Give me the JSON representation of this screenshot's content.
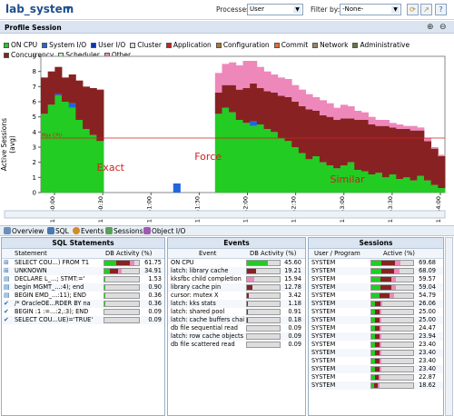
{
  "header": {
    "title": "lab_system",
    "processes_label": "Processes:",
    "processes_value": "User",
    "filter_label": "Filter by:",
    "filter_value": "-None-"
  },
  "profile": {
    "title": "Profile Session"
  },
  "legend": [
    {
      "name": "ON CPU",
      "color": "#22cc22"
    },
    {
      "name": "System I/O",
      "color": "#2266dd"
    },
    {
      "name": "User I/O",
      "color": "#1133aa"
    },
    {
      "name": "Cluster",
      "color": "#dddddd"
    },
    {
      "name": "Application",
      "color": "#cc2222"
    },
    {
      "name": "Configuration",
      "color": "#aa7733"
    },
    {
      "name": "Commit",
      "color": "#e07030"
    },
    {
      "name": "Network",
      "color": "#9a8866"
    },
    {
      "name": "Administrative",
      "color": "#667744"
    },
    {
      "name": "Concurrency",
      "color": "#882222"
    },
    {
      "name": "Scheduler",
      "color": "#ccffcc"
    },
    {
      "name": "Other",
      "color": "#ee88bb"
    }
  ],
  "chart_data": {
    "type": "area",
    "ylabel": "Active Sessions (avg)",
    "ylim": [
      0,
      9
    ],
    "yticks": [
      0,
      1,
      2,
      3,
      4,
      5,
      6,
      7,
      8,
      9
    ],
    "max_cpu_label": "Max CPU",
    "max_cpu": 3.6,
    "xticks": [
      "12:50:00",
      "12:50:30",
      "12:51:00",
      "12:51:30",
      "12:52:00",
      "12:52:30",
      "12:53:00",
      "12:53:30",
      "12:54:00"
    ],
    "annotations": [
      {
        "text": "Exact",
        "x": 50
      },
      {
        "text": "Force",
        "x": 120
      },
      {
        "text": "Similar",
        "x": 220
      }
    ],
    "x": [
      0,
      5,
      10,
      15,
      20,
      25,
      30,
      35,
      40,
      45,
      50,
      55,
      60,
      65,
      70,
      75,
      80,
      85,
      90,
      95,
      100,
      105,
      110,
      115,
      120,
      125,
      130,
      135,
      140,
      145,
      150,
      155,
      160,
      165,
      170,
      175,
      180,
      185,
      190,
      195,
      200,
      205,
      210,
      215,
      220,
      225,
      230,
      235,
      240,
      245,
      250,
      255,
      260,
      265,
      270,
      275,
      280,
      285
    ],
    "series": [
      {
        "name": "ON CPU",
        "values": [
          5.2,
          5.8,
          6.4,
          6.0,
          5.6,
          4.8,
          4.2,
          3.8,
          3.4,
          0,
          0,
          0,
          0,
          0,
          0,
          0,
          0,
          0,
          0,
          0,
          0,
          0,
          0,
          0,
          0,
          5.2,
          5.6,
          5.3,
          4.8,
          4.6,
          4.4,
          4.5,
          4.2,
          4.0,
          3.6,
          3.4,
          3.0,
          2.6,
          2.2,
          2.4,
          2.0,
          1.8,
          1.6,
          1.8,
          2.0,
          1.5,
          1.4,
          1.2,
          1.3,
          1.0,
          1.2,
          0.9,
          1.0,
          0.8,
          1.1,
          0.8,
          0.5,
          0.3
        ]
      },
      {
        "name": "System I/O",
        "values": [
          0,
          0,
          0.1,
          0,
          0.3,
          0,
          0,
          0,
          0,
          0,
          0,
          0,
          0,
          0,
          0,
          0,
          0,
          0,
          0,
          0.6,
          0,
          0,
          0,
          0,
          0,
          0,
          0,
          0,
          0,
          0,
          0.3,
          0,
          0,
          0,
          0,
          0,
          0,
          0,
          0,
          0,
          0,
          0,
          0,
          0,
          0,
          0,
          0,
          0,
          0,
          0,
          0,
          0,
          0,
          0,
          0,
          0,
          0,
          0
        ]
      },
      {
        "name": "Concurrency",
        "values": [
          2.4,
          2.2,
          1.8,
          1.6,
          1.9,
          2.6,
          2.8,
          3.1,
          3.4,
          0,
          0,
          0,
          0,
          0,
          0,
          0,
          0,
          0,
          0,
          0,
          0,
          0,
          0,
          0,
          0,
          1.4,
          1.5,
          1.8,
          2.0,
          2.3,
          2.5,
          2.4,
          2.5,
          2.6,
          2.8,
          2.9,
          3.0,
          3.1,
          3.3,
          3.0,
          3.1,
          3.2,
          3.2,
          3.1,
          2.9,
          3.3,
          3.4,
          3.3,
          3.1,
          3.4,
          3.1,
          3.3,
          3.2,
          3.3,
          3.0,
          2.6,
          2.4,
          2.1
        ]
      },
      {
        "name": "Other",
        "values": [
          0,
          0,
          0,
          0,
          0,
          0,
          0,
          0,
          0,
          0,
          0,
          0,
          0,
          0,
          0,
          0,
          0,
          0,
          0,
          0,
          0,
          0,
          0,
          0,
          0,
          1.3,
          1.4,
          1.5,
          1.6,
          1.8,
          1.5,
          1.4,
          1.3,
          1.2,
          1.2,
          1.2,
          1.1,
          1.1,
          1.0,
          0.9,
          1.0,
          0.9,
          0.8,
          0.9,
          0.8,
          0.6,
          0.5,
          0.5,
          0.4,
          0.4,
          0.3,
          0.3,
          0.2,
          0.3,
          0.2,
          0.2,
          0.1,
          0.1
        ]
      }
    ]
  },
  "tabs": [
    "Overview",
    "SQL",
    "Events",
    "Sessions",
    "Object I/O"
  ],
  "sql": {
    "title": "SQL Statements",
    "col1": "Statement",
    "col2": "DB Activity (%)",
    "rows": [
      {
        "text": "SELECT COU...) FROM T1",
        "val": "61.75",
        "bars": [
          [
            "#22cc22",
            40
          ],
          [
            "#882222",
            45
          ],
          [
            "#ee88bb",
            15
          ]
        ]
      },
      {
        "text": "UNKNOWN",
        "val": "34.91",
        "bars": [
          [
            "#22cc22",
            30
          ],
          [
            "#882222",
            50
          ],
          [
            "#ee88bb",
            20
          ]
        ]
      },
      {
        "text": "DECLARE L_...; STMT:='",
        "val": "1.53",
        "bars": [
          [
            "#22cc22",
            100
          ]
        ]
      },
      {
        "text": "begin MGMT_...:4); end",
        "val": "0.90",
        "bars": [
          [
            "#22cc22",
            100
          ]
        ]
      },
      {
        "text": "BEGIN EMD_...:11); END",
        "val": "0.36",
        "bars": [
          [
            "#22cc22",
            100
          ]
        ]
      },
      {
        "text": "/* OracleOE...RDER BY na",
        "val": "0.36",
        "bars": [
          [
            "#22cc22",
            100
          ]
        ]
      },
      {
        "text": "BEGIN :1 :=...:2,:3); END",
        "val": "0.09",
        "bars": [
          [
            "#22cc22",
            100
          ]
        ]
      },
      {
        "text": "SELECT COU...UE)='TRUE'",
        "val": "0.09",
        "bars": [
          [
            "#22cc22",
            100
          ]
        ]
      }
    ]
  },
  "events": {
    "title": "Events",
    "col1": "Event",
    "col2": "DB Activity (%)",
    "rows": [
      {
        "text": "ON CPU",
        "val": "45.60",
        "bars": [
          [
            "#22cc22",
            100
          ]
        ]
      },
      {
        "text": "latch: library cache",
        "val": "19.21",
        "bars": [
          [
            "#882222",
            100
          ]
        ]
      },
      {
        "text": "kksfbc child completion",
        "val": "15.94",
        "bars": [
          [
            "#ee88bb",
            100
          ]
        ]
      },
      {
        "text": "library cache pin",
        "val": "12.78",
        "bars": [
          [
            "#882222",
            100
          ]
        ]
      },
      {
        "text": "cursor: mutex X",
        "val": "3.42",
        "bars": [
          [
            "#882222",
            100
          ]
        ]
      },
      {
        "text": "latch: kks stats",
        "val": "1.18",
        "bars": [
          [
            "#882222",
            100
          ]
        ]
      },
      {
        "text": "latch: shared pool",
        "val": "0.91",
        "bars": [
          [
            "#882222",
            100
          ]
        ]
      },
      {
        "text": "latch: cache buffers chains",
        "val": "0.18",
        "bars": [
          [
            "#882222",
            100
          ]
        ]
      },
      {
        "text": "db file sequential read",
        "val": "0.09",
        "bars": [
          [
            "#1133aa",
            100
          ]
        ]
      },
      {
        "text": "latch: row cache objects",
        "val": "0.09",
        "bars": [
          [
            "#882222",
            100
          ]
        ]
      },
      {
        "text": "db file scattered read",
        "val": "0.09",
        "bars": [
          [
            "#1133aa",
            100
          ]
        ]
      }
    ]
  },
  "sessions": {
    "title": "Sessions",
    "col1": "User / Program",
    "col2": "Active (%)",
    "rows": [
      {
        "text": "SYSTEM",
        "val": "69.68"
      },
      {
        "text": "SYSTEM",
        "val": "68.09"
      },
      {
        "text": "SYSTEM",
        "val": "59.57"
      },
      {
        "text": "SYSTEM",
        "val": "59.04"
      },
      {
        "text": "SYSTEM",
        "val": "54.79"
      },
      {
        "text": "SYSTEM",
        "val": "26.06"
      },
      {
        "text": "SYSTEM",
        "val": "25.00"
      },
      {
        "text": "SYSTEM",
        "val": "25.00"
      },
      {
        "text": "SYSTEM",
        "val": "24.47"
      },
      {
        "text": "SYSTEM",
        "val": "23.94"
      },
      {
        "text": "SYSTEM",
        "val": "23.40"
      },
      {
        "text": "SYSTEM",
        "val": "23.40"
      },
      {
        "text": "SYSTEM",
        "val": "23.40"
      },
      {
        "text": "SYSTEM",
        "val": "23.40"
      },
      {
        "text": "SYSTEM",
        "val": "22.87"
      },
      {
        "text": "SYSTEM",
        "val": "18.62"
      }
    ]
  }
}
